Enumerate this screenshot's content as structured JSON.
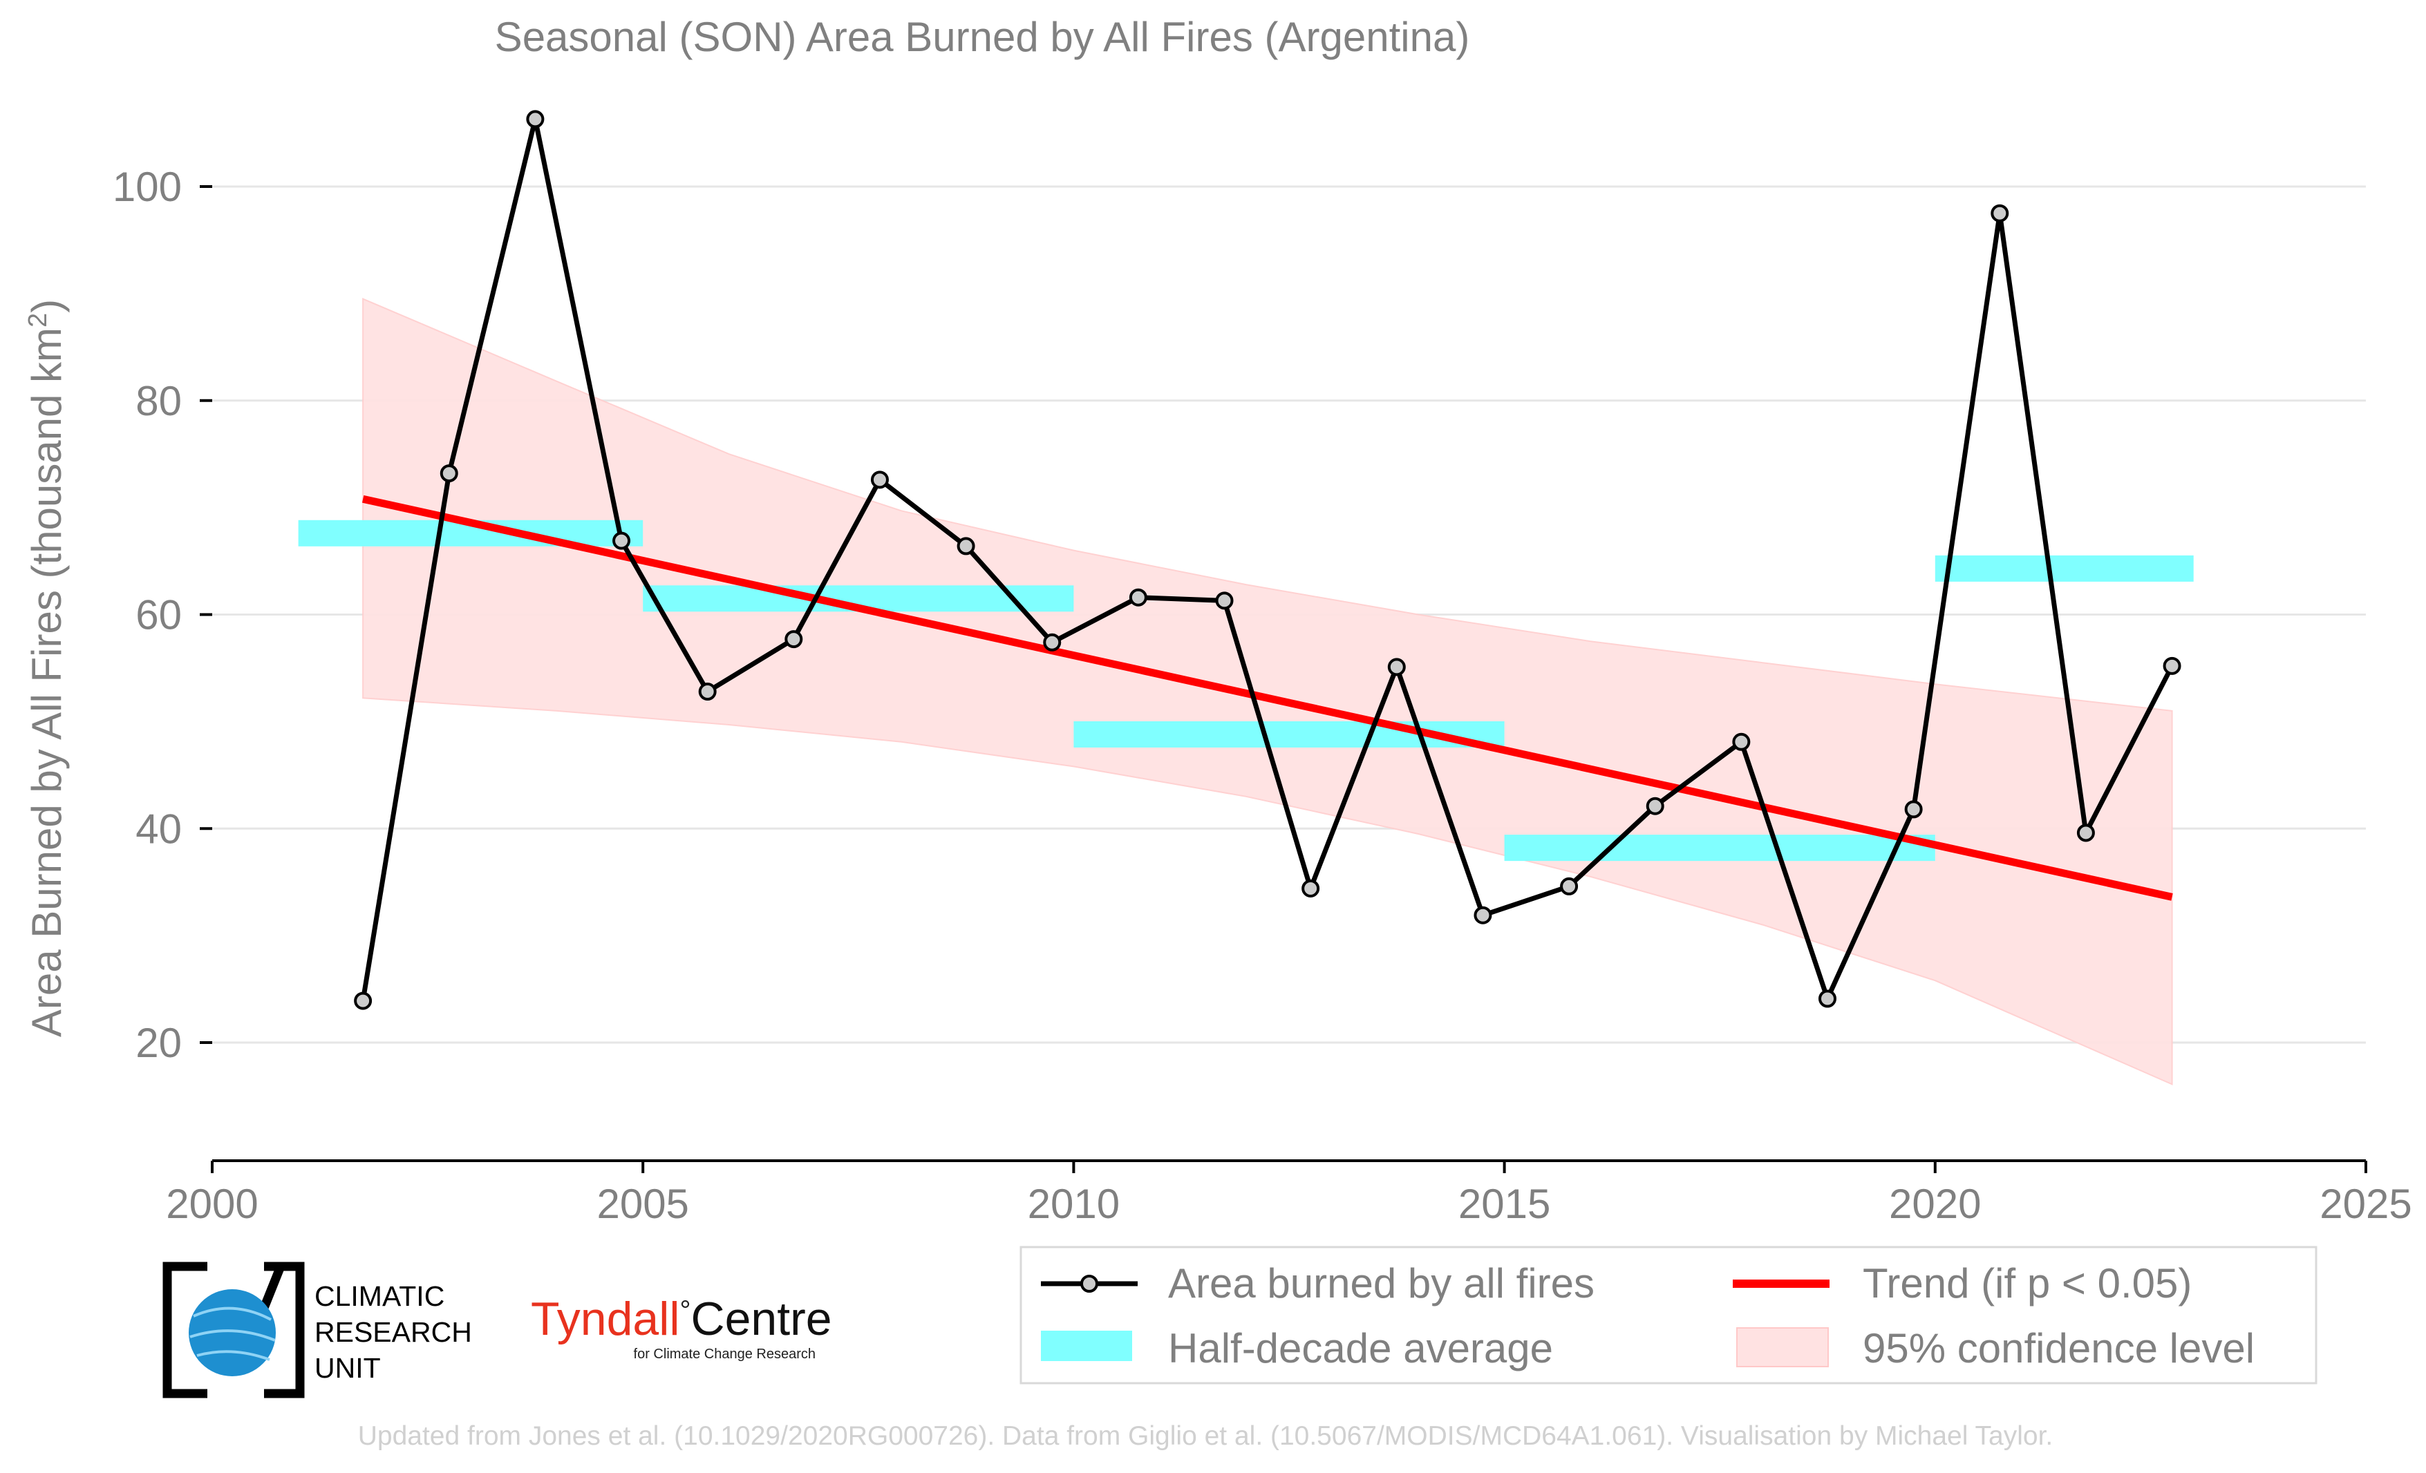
{
  "chart_data": {
    "type": "line",
    "title": "Seasonal (SON) Area Burned by All Fires (Argentina)",
    "ylabel_main": "Area Burned by All Fires (thousand km",
    "ylabel_sup": "2",
    "ylabel_close": ")",
    "xlabel": "",
    "xlim": [
      2000,
      2025
    ],
    "ylim": [
      10,
      110
    ],
    "x_ticks": [
      2000,
      2005,
      2010,
      2015,
      2020,
      2025
    ],
    "y_ticks": [
      20,
      40,
      60,
      80,
      100
    ],
    "grid": "horizontal",
    "series": [
      {
        "name": "Area burned by all fires",
        "color": "#000000",
        "x": [
          2001.75,
          2002.75,
          2003.75,
          2004.75,
          2005.75,
          2006.75,
          2007.75,
          2008.75,
          2009.75,
          2010.75,
          2011.75,
          2012.75,
          2013.75,
          2014.75,
          2015.75,
          2016.75,
          2017.75,
          2018.75,
          2019.75,
          2020.75,
          2021.75,
          2022.75
        ],
        "values": [
          23.9,
          73.2,
          106.3,
          66.9,
          52.8,
          57.7,
          72.6,
          66.4,
          57.4,
          61.6,
          61.3,
          34.4,
          55.1,
          31.9,
          34.6,
          42.1,
          48.1,
          24.1,
          41.8,
          97.5,
          39.6,
          55.2
        ]
      }
    ],
    "half_decade_average": {
      "name": "Half-decade average",
      "color": "#80ffff",
      "segments": [
        {
          "x0": 2001,
          "x1": 2005,
          "value": 67.6
        },
        {
          "x0": 2005,
          "x1": 2010,
          "value": 61.5
        },
        {
          "x0": 2010,
          "x1": 2015,
          "value": 48.8
        },
        {
          "x0": 2015,
          "x1": 2020,
          "value": 38.2
        },
        {
          "x0": 2020,
          "x1": 2023,
          "value": 64.3
        }
      ]
    },
    "trend": {
      "name": "Trend (if p < 0.05)",
      "color": "#ff0000",
      "x": [
        2001.75,
        2022.75
      ],
      "values": [
        70.8,
        33.6
      ]
    },
    "confidence": {
      "name": "95% confidence level",
      "color": "#ffe2e2",
      "x": [
        2001.75,
        2004,
        2006,
        2008,
        2010,
        2012,
        2014,
        2016,
        2018,
        2020,
        2022.75
      ],
      "upper": [
        89.5,
        81.8,
        75.0,
        69.7,
        66.0,
        62.8,
        60.0,
        57.5,
        55.5,
        53.5,
        51.0
      ],
      "lower": [
        52.2,
        51.0,
        49.7,
        48.1,
        45.8,
        43.0,
        39.5,
        35.5,
        31.0,
        25.8,
        16.1
      ]
    },
    "legend_placement": "bottom-right"
  },
  "logos": {
    "cru": {
      "line1": "CLIMATIC",
      "line2": "RESEARCH",
      "line3": "UNIT"
    },
    "tyndall": {
      "main": "Tyndall",
      "degree": "°",
      "centre": "Centre",
      "sub": "for Climate Change Research"
    }
  },
  "credit": "Updated from Jones et al. (10.1029/2020RG000726). Data from Giglio et al. (10.5067/MODIS/MCD64A1.061). Visualisation by Michael Taylor.",
  "colors": {
    "text_gray": "#808080",
    "grid": "#e6e6e6",
    "axis": "#000000",
    "marker_fill": "#cccccc",
    "credit": "#d0d0d0",
    "cru_blue": "#1e8fd0",
    "tyndall_red": "#e8321e"
  }
}
